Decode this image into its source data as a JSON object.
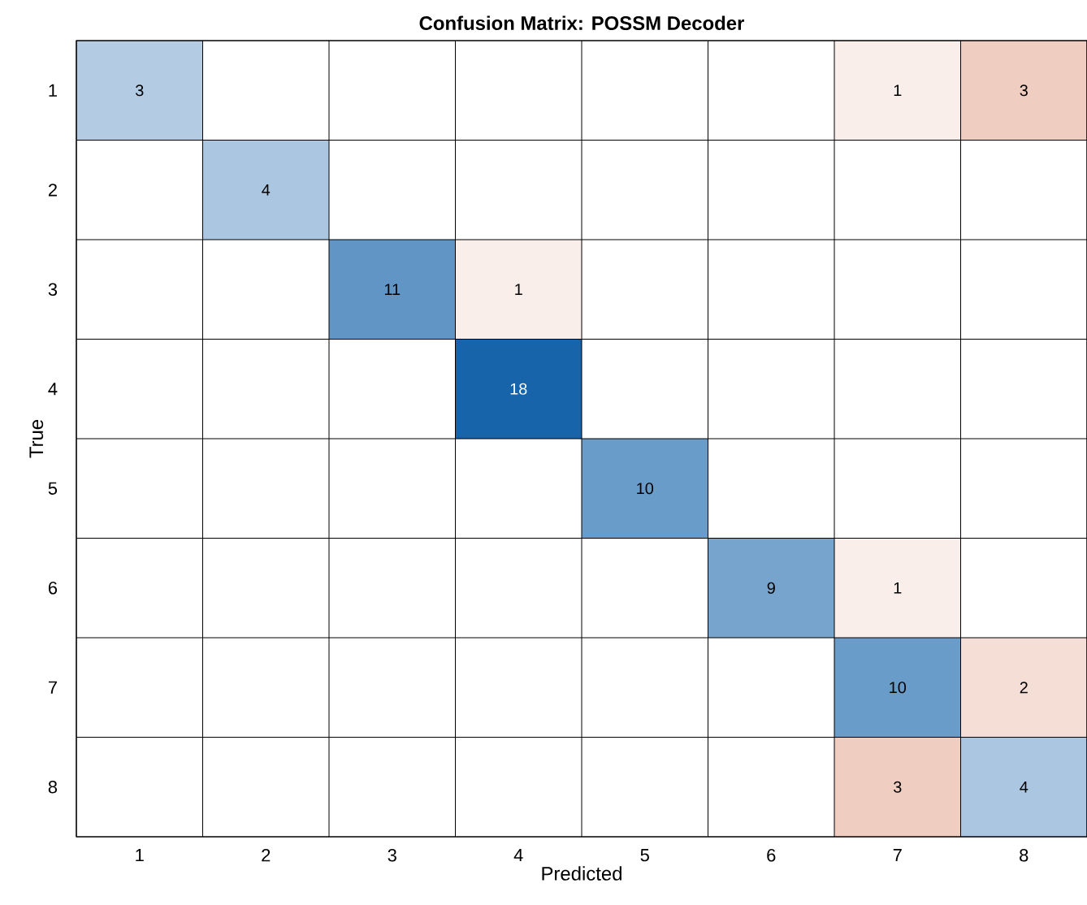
{
  "chart_data": {
    "type": "heatmap",
    "title": "Confusion Matrix: POSSM Decoder",
    "xlabel": "Predicted",
    "ylabel": "True",
    "data_labels": true,
    "categories": [
      "1",
      "2",
      "3",
      "4",
      "5",
      "6",
      "7",
      "8"
    ],
    "y_categories": [
      "1",
      "2",
      "3",
      "4",
      "5",
      "6",
      "7",
      "8"
    ],
    "cells": [
      [
        3,
        null,
        null,
        null,
        null,
        null,
        1,
        3
      ],
      [
        null,
        4,
        null,
        null,
        null,
        null,
        null,
        null
      ],
      [
        null,
        null,
        11,
        1,
        null,
        null,
        null,
        null
      ],
      [
        null,
        null,
        null,
        18,
        null,
        null,
        null,
        null
      ],
      [
        null,
        null,
        null,
        null,
        10,
        null,
        null,
        null
      ],
      [
        null,
        null,
        null,
        null,
        null,
        9,
        1,
        null
      ],
      [
        null,
        null,
        null,
        null,
        null,
        null,
        10,
        2
      ],
      [
        null,
        null,
        null,
        null,
        null,
        null,
        3,
        4
      ]
    ]
  }
}
